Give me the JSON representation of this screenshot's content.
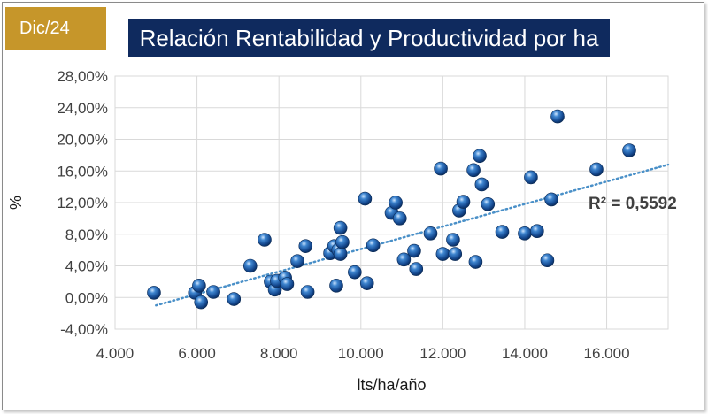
{
  "badge": {
    "text": "Dic/24"
  },
  "title": {
    "text": "Relación Rentabilidad y Productividad por ha"
  },
  "chart_data": {
    "type": "scatter",
    "title": "Relación Rentabilidad y Productividad por ha",
    "xlabel": "lts/ha/año",
    "ylabel": "%",
    "xlim": [
      4000,
      17500
    ],
    "ylim": [
      -4,
      28
    ],
    "x_ticks": [
      4000,
      6000,
      8000,
      10000,
      12000,
      14000,
      16000
    ],
    "x_tick_labels": [
      "4.000",
      "6.000",
      "8.000",
      "10.000",
      "12.000",
      "14.000",
      "16.000"
    ],
    "y_ticks": [
      -4,
      0,
      4,
      8,
      12,
      16,
      20,
      24,
      28
    ],
    "y_tick_labels": [
      "-4,00%",
      "0,00%",
      "4,00%",
      "8,00%",
      "12,00%",
      "16,00%",
      "20,00%",
      "24,00%",
      "28,00%"
    ],
    "grid": true,
    "legend": "none",
    "point_color": "#1f5fa8",
    "trendline": {
      "type": "linear",
      "style": "dotted",
      "color": "#4a90c8",
      "x": [
        5000,
        17500
      ],
      "y": [
        -1.0,
        16.8
      ]
    },
    "annotation": "R² = 0,5592",
    "points": [
      {
        "x": 4950,
        "y": 0.6
      },
      {
        "x": 5950,
        "y": 0.6
      },
      {
        "x": 6050,
        "y": 1.5
      },
      {
        "x": 6100,
        "y": -0.6
      },
      {
        "x": 6400,
        "y": 0.7
      },
      {
        "x": 6900,
        "y": -0.2
      },
      {
        "x": 7300,
        "y": 4.0
      },
      {
        "x": 7650,
        "y": 7.3
      },
      {
        "x": 7800,
        "y": 2.0
      },
      {
        "x": 7900,
        "y": 1.0
      },
      {
        "x": 7950,
        "y": 2.1
      },
      {
        "x": 8150,
        "y": 2.5
      },
      {
        "x": 8200,
        "y": 1.7
      },
      {
        "x": 8450,
        "y": 4.6
      },
      {
        "x": 8650,
        "y": 6.5
      },
      {
        "x": 8700,
        "y": 0.7
      },
      {
        "x": 9250,
        "y": 5.6
      },
      {
        "x": 9350,
        "y": 6.5
      },
      {
        "x": 9400,
        "y": 1.5
      },
      {
        "x": 9450,
        "y": 6.0
      },
      {
        "x": 9500,
        "y": 8.8
      },
      {
        "x": 9500,
        "y": 5.5
      },
      {
        "x": 9550,
        "y": 7.0
      },
      {
        "x": 9850,
        "y": 3.2
      },
      {
        "x": 10100,
        "y": 12.5
      },
      {
        "x": 10150,
        "y": 1.8
      },
      {
        "x": 10300,
        "y": 6.6
      },
      {
        "x": 10750,
        "y": 10.7
      },
      {
        "x": 10850,
        "y": 12.0
      },
      {
        "x": 10950,
        "y": 10.0
      },
      {
        "x": 11050,
        "y": 4.8
      },
      {
        "x": 11300,
        "y": 5.9
      },
      {
        "x": 11350,
        "y": 3.6
      },
      {
        "x": 11700,
        "y": 8.1
      },
      {
        "x": 11950,
        "y": 16.3
      },
      {
        "x": 12000,
        "y": 5.5
      },
      {
        "x": 12250,
        "y": 7.3
      },
      {
        "x": 12300,
        "y": 5.5
      },
      {
        "x": 12400,
        "y": 11.0
      },
      {
        "x": 12500,
        "y": 12.1
      },
      {
        "x": 12750,
        "y": 16.1
      },
      {
        "x": 12800,
        "y": 4.5
      },
      {
        "x": 12900,
        "y": 17.9
      },
      {
        "x": 12950,
        "y": 14.3
      },
      {
        "x": 13100,
        "y": 11.8
      },
      {
        "x": 13450,
        "y": 8.3
      },
      {
        "x": 14000,
        "y": 8.1
      },
      {
        "x": 14150,
        "y": 15.2
      },
      {
        "x": 14300,
        "y": 8.4
      },
      {
        "x": 14550,
        "y": 4.7
      },
      {
        "x": 14650,
        "y": 12.4
      },
      {
        "x": 14800,
        "y": 22.9
      },
      {
        "x": 15750,
        "y": 16.2
      },
      {
        "x": 16550,
        "y": 18.6
      }
    ]
  }
}
